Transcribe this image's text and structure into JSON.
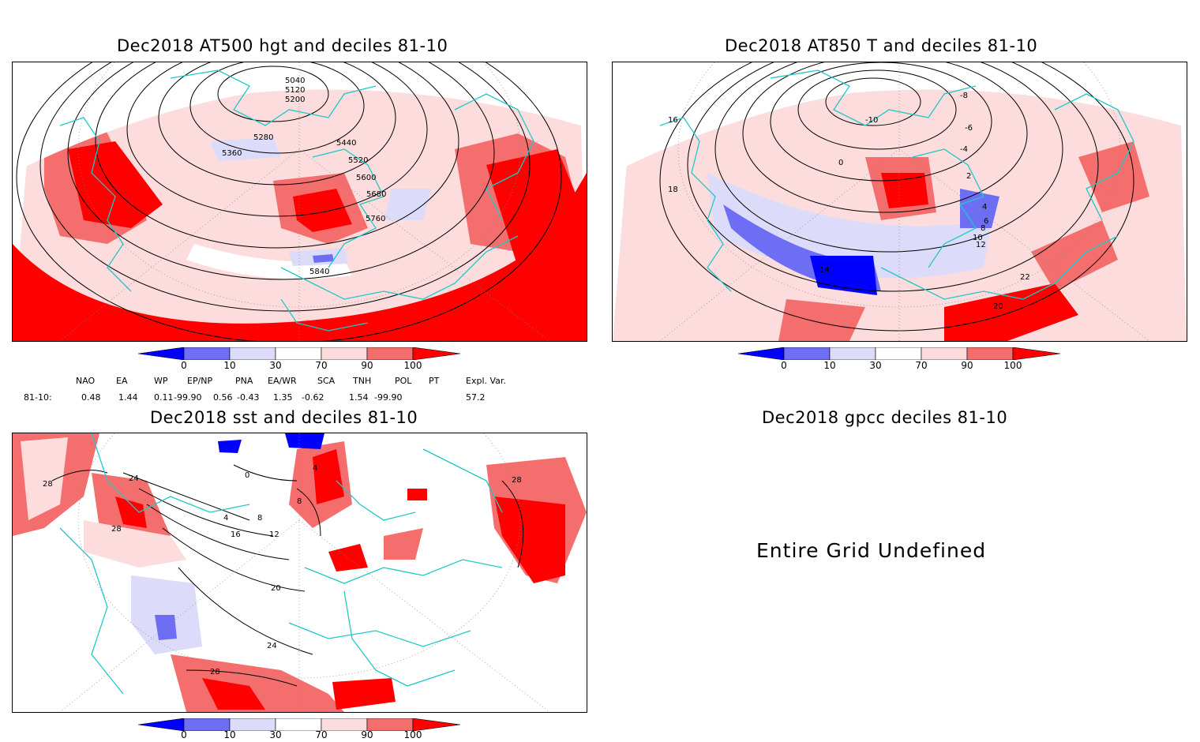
{
  "panels": {
    "hgt": {
      "title": "Dec2018 AT500 hgt and deciles 81-10",
      "contour_labels": [
        "5040",
        "5120",
        "5200",
        "5280",
        "5360",
        "5440",
        "5520",
        "5600",
        "5680",
        "5760",
        "5840"
      ]
    },
    "t850": {
      "title": "Dec2018 AT850 T and deciles 81-10",
      "contour_labels": [
        "-10",
        "-8",
        "-6",
        "-4",
        "0",
        "2",
        "4",
        "6",
        "8",
        "10",
        "12",
        "14",
        "16",
        "18",
        "20",
        "22"
      ]
    },
    "sst": {
      "title": "Dec2018 sst and deciles 81-10",
      "contour_labels": [
        "0",
        "4",
        "8",
        "12",
        "16",
        "20",
        "24",
        "28"
      ]
    },
    "gpcc": {
      "title": "Dec2018 gpcc deciles 81-10",
      "message": "Entire Grid Undefined"
    }
  },
  "colorbar": {
    "labels": [
      "0",
      "10",
      "30",
      "70",
      "90",
      "100"
    ],
    "colors": [
      "#0000ff",
      "#6e6ef5",
      "#dcdcfa",
      "#ffffff",
      "#fcdcdc",
      "#f56e6e",
      "#ff0000"
    ]
  },
  "indices": {
    "headers": [
      "NAO",
      "EA",
      "WP",
      "EP/NP",
      "PNA",
      "EA/WR",
      "SCA",
      "TNH",
      "POL",
      "PT",
      "Expl. Var."
    ],
    "row_label": "81-10:",
    "values": [
      "0.48",
      "1.44",
      "0.11",
      "-99.90",
      "0.56",
      "-0.43",
      "1.35",
      "-0.62",
      "1.54",
      "-99.90",
      "57.2"
    ]
  },
  "style": {
    "coast_color": "#20c8c8",
    "contour_color": "#000000"
  }
}
